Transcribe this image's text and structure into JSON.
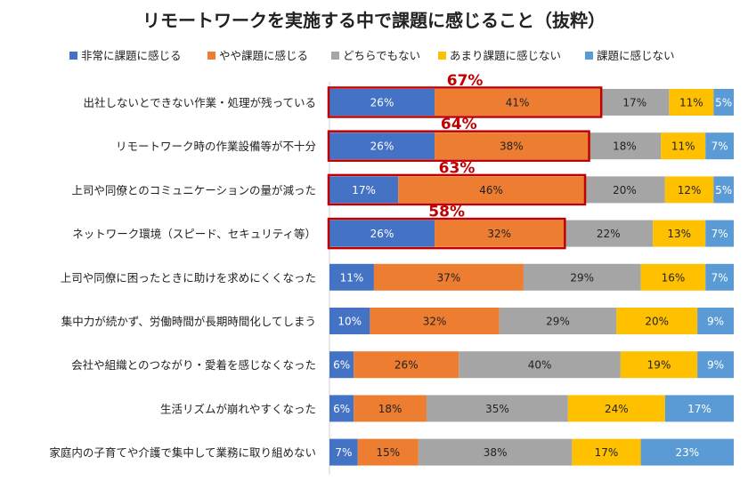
{
  "chart_data": {
    "type": "bar",
    "orientation": "horizontal",
    "stacked": true,
    "title": "リモートワークを実施する中で課題に感じること（抜粋）",
    "legend_position": "top",
    "xlim": [
      0,
      100
    ],
    "grid": false,
    "categories": [
      "出社しないとできない作業・処理が残っている",
      "リモートワーク時の作業設備等が不十分",
      "上司や同僚とのコミュニケーションの量が減った",
      "ネットワーク環境（スピード、セキュリティ等）",
      "上司や同僚に困ったときに助けを求めにくくなった",
      "集中力が続かず、労働時間が長期時間化してしまう",
      "会社や組織とのつながり・愛着を感じなくなった",
      "生活リズムが崩れやすくなった",
      "家庭内の子育てや介護で集中して業務に取り組めない"
    ],
    "series": [
      {
        "name": "非常に課題に感じる",
        "color": "#4472C4",
        "values": [
          26,
          26,
          17,
          26,
          11,
          10,
          6,
          6,
          7
        ],
        "labels": [
          "26%",
          "26%",
          "17%",
          "26%",
          "11%",
          "10%",
          "6%",
          "6%",
          "7%"
        ]
      },
      {
        "name": "やや課題に感じる",
        "color": "#ED7D31",
        "values": [
          41,
          38,
          46,
          32,
          37,
          32,
          26,
          18,
          15
        ],
        "labels": [
          "41%",
          "38%",
          "46%",
          "32%",
          "37%",
          "32%",
          "26%",
          "18%",
          "15%"
        ]
      },
      {
        "name": "どちらでもない",
        "color": "#A5A5A5",
        "values": [
          17,
          18,
          20,
          22,
          29,
          29,
          40,
          35,
          38
        ],
        "labels": [
          "17%",
          "18%",
          "20%",
          "22%",
          "29%",
          "29%",
          "40%",
          "35%",
          "38%"
        ]
      },
      {
        "name": "あまり課題に感じない",
        "color": "#FFC000",
        "values": [
          11,
          11,
          12,
          13,
          16,
          20,
          19,
          24,
          17
        ],
        "labels": [
          "11%",
          "11%",
          "12%",
          "13%",
          "16%",
          "20%",
          "19%",
          "24%",
          "17%"
        ]
      },
      {
        "name": "課題に感じない",
        "color": "#5B9BD5",
        "values": [
          5,
          7,
          5,
          7,
          7,
          9,
          9,
          17,
          23
        ],
        "labels": [
          "5%",
          "7%",
          "5%",
          "7%",
          "7%",
          "9%",
          "9%",
          "17%",
          "23%"
        ]
      }
    ],
    "highlights": [
      {
        "category_index": 0,
        "total_label": "67%",
        "total": 67
      },
      {
        "category_index": 1,
        "total_label": "64%",
        "total": 64
      },
      {
        "category_index": 2,
        "total_label": "63%",
        "total": 63
      },
      {
        "category_index": 3,
        "total_label": "58%",
        "total": 58
      }
    ],
    "highlight_color": "#C00000"
  }
}
